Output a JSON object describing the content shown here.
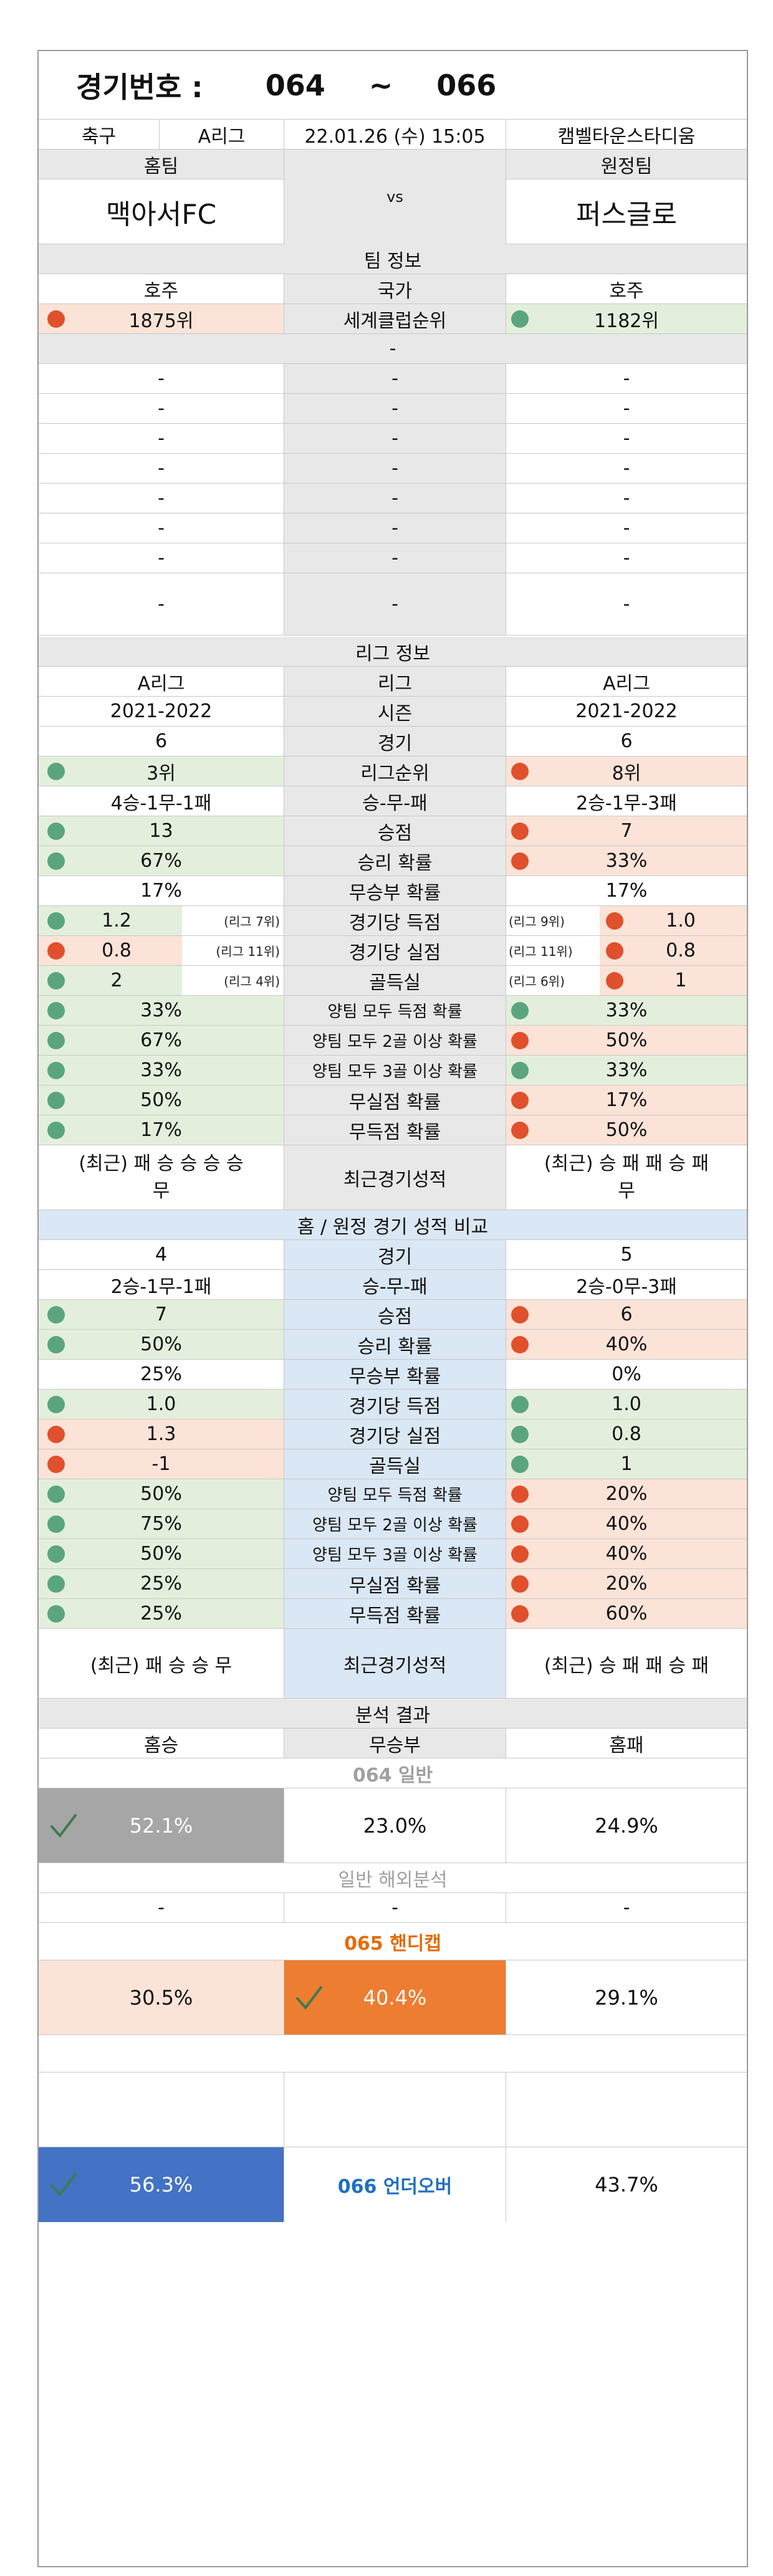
{
  "header": {
    "game_label": "경기번호 :",
    "game_start": "064",
    "tilde": "~",
    "game_end": "066"
  },
  "match": {
    "sport": "축구",
    "league": "A리그",
    "datetime": "22.01.26 (수) 15:05",
    "stadium": "캠벨타운스타디움",
    "home_label": "홈팀",
    "away_label": "원정팀",
    "vs": "vs",
    "home_team": "맥아서FC",
    "away_team": "퍼스글로"
  },
  "team_info": {
    "title": "팀 정보",
    "country_home": "호주",
    "country_label": "국가",
    "country_away": "호주",
    "rank_home": "1875위",
    "rank_label": "세계클럽순위",
    "rank_away": "1182위",
    "dash": "-"
  },
  "league_info": {
    "title": "리그 정보",
    "rows": [
      {
        "h": "A리그",
        "l": "리그",
        "a": "A리그"
      },
      {
        "h": "2021-2022",
        "l": "시즌",
        "a": "2021-2022"
      },
      {
        "h": "6",
        "l": "경기",
        "a": "6"
      },
      {
        "h": "3위",
        "l": "리그순위",
        "a": "8위",
        "hd": "g",
        "ad": "o",
        "hc": "grn",
        "ac": "org"
      },
      {
        "h": "4승-1무-1패",
        "l": "승-무-패",
        "a": "2승-1무-3패"
      },
      {
        "h": "13",
        "l": "승점",
        "a": "7",
        "hd": "g",
        "ad": "o",
        "hc": "grn",
        "ac": "org"
      },
      {
        "h": "67%",
        "l": "승리 확률",
        "a": "33%",
        "hd": "g",
        "ad": "o",
        "hc": "grn",
        "ac": "org"
      },
      {
        "h": "17%",
        "l": "무승부 확률",
        "a": "17%"
      },
      {
        "h": "1.2",
        "l": "경기당 득점",
        "a": "1.0",
        "hd": "g",
        "ad": "o",
        "hc": "grn",
        "ac": "org",
        "hn": "(리그 7위)",
        "an": "(리그 9위)"
      },
      {
        "h": "0.8",
        "l": "경기당 실점",
        "a": "0.8",
        "hd": "o",
        "ad": "o",
        "hc": "org",
        "ac": "org",
        "hn": "(리그 11위)",
        "an": "(리그 11위)"
      },
      {
        "h": "2",
        "l": "골득실",
        "a": "1",
        "hd": "g",
        "ad": "o",
        "hc": "grn",
        "ac": "org",
        "hn": "(리그 4위)",
        "an": "(리그 6위)"
      },
      {
        "h": "33%",
        "l": "양팀 모두 득점 확률",
        "a": "33%",
        "hd": "g",
        "ad": "g",
        "hc": "grn",
        "ac": "grn"
      },
      {
        "h": "67%",
        "l": "양팀 모두 2골 이상 확률",
        "a": "50%",
        "hd": "g",
        "ad": "o",
        "hc": "grn",
        "ac": "org"
      },
      {
        "h": "33%",
        "l": "양팀 모두 3골 이상 확률",
        "a": "33%",
        "hd": "g",
        "ad": "g",
        "hc": "grn",
        "ac": "grn"
      },
      {
        "h": "50%",
        "l": "무실점 확률",
        "a": "17%",
        "hd": "g",
        "ad": "o",
        "hc": "grn",
        "ac": "org"
      },
      {
        "h": "17%",
        "l": "무득점 확률",
        "a": "50%",
        "hd": "g",
        "ad": "o",
        "hc": "grn",
        "ac": "org"
      }
    ],
    "recent_home_1": "(최근) 패 승 승 승 승",
    "recent_home_2": "무",
    "recent_label": "최근경기성적",
    "recent_away_1": "(최근) 승 패 패 승 패",
    "recent_away_2": "무"
  },
  "compare": {
    "title": "홈 / 원정 경기 성적 비교",
    "rows": [
      {
        "h": "4",
        "l": "경기",
        "a": "5"
      },
      {
        "h": "2승-1무-1패",
        "l": "승-무-패",
        "a": "2승-0무-3패"
      },
      {
        "h": "7",
        "l": "승점",
        "a": "6",
        "hd": "g",
        "ad": "o",
        "hc": "grn",
        "ac": "org"
      },
      {
        "h": "50%",
        "l": "승리 확률",
        "a": "40%",
        "hd": "g",
        "ad": "o",
        "hc": "grn",
        "ac": "org"
      },
      {
        "h": "25%",
        "l": "무승부 확률",
        "a": "0%"
      },
      {
        "h": "1.0",
        "l": "경기당 득점",
        "a": "1.0",
        "hd": "g",
        "ad": "g",
        "hc": "grn",
        "ac": "grn"
      },
      {
        "h": "1.3",
        "l": "경기당 실점",
        "a": "0.8",
        "hd": "o",
        "ad": "g",
        "hc": "org",
        "ac": "grn"
      },
      {
        "h": "-1",
        "l": "골득실",
        "a": "1",
        "hd": "o",
        "ad": "g",
        "hc": "org",
        "ac": "grn"
      },
      {
        "h": "50%",
        "l": "양팀 모두 득점 확률",
        "a": "20%",
        "hd": "g",
        "ad": "o",
        "hc": "grn",
        "ac": "org"
      },
      {
        "h": "75%",
        "l": "양팀 모두 2골 이상 확률",
        "a": "40%",
        "hd": "g",
        "ad": "o",
        "hc": "grn",
        "ac": "org"
      },
      {
        "h": "50%",
        "l": "양팀 모두 3골 이상 확률",
        "a": "40%",
        "hd": "g",
        "ad": "o",
        "hc": "grn",
        "ac": "org"
      },
      {
        "h": "25%",
        "l": "무실점 확률",
        "a": "20%",
        "hd": "g",
        "ad": "o",
        "hc": "grn",
        "ac": "org"
      },
      {
        "h": "25%",
        "l": "무득점 확률",
        "a": "60%",
        "hd": "g",
        "ad": "o",
        "hc": "grn",
        "ac": "org"
      }
    ],
    "recent_home": "(최근) 패 승 승 무",
    "recent_label": "최근경기성적",
    "recent_away": "(최근) 승 패 패 승 패"
  },
  "analysis": {
    "title": "분석 결과",
    "win": "홈승",
    "draw": "무승부",
    "loss": "홈패",
    "general_title": "064 일반",
    "g_win": "52.1%",
    "g_draw": "23.0%",
    "g_loss": "24.9%",
    "overseas_title": "일반 해외분석",
    "dash": "-",
    "handicap_title": "065 핸디캡",
    "h_win": "30.5%",
    "h_draw": "40.4%",
    "h_loss": "29.1%",
    "uo_label": "066 언더오버",
    "uo_under": "56.3%",
    "uo_over": "43.7%"
  },
  "colors": {
    "gray_highlight": "#a6a6a6",
    "orange_highlight": "#ed7d31",
    "blue_highlight": "#4472c4",
    "green_dot": "#5aa57d",
    "orange_dot": "#e0502c",
    "handicap_title": "#e46c0a",
    "uo_label": "#1f6fbf"
  }
}
